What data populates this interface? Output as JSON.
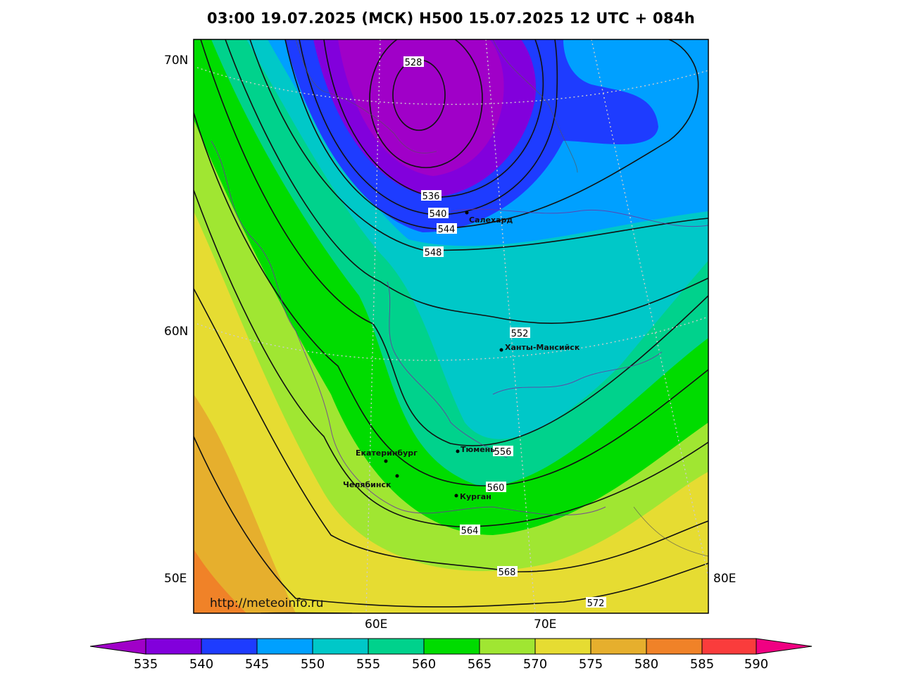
{
  "title": "03:00 19.07.2025 (МСК) H500  15.07.2025 12 UTC + 084h",
  "watermark": "http://meteoinfo.ru",
  "lat_labels": [
    "70N",
    "60N",
    "50E"
  ],
  "lon_labels": [
    "60E",
    "70E",
    "80E"
  ],
  "contour_labels": [
    "528",
    "536",
    "540",
    "544",
    "548",
    "552",
    "556",
    "560",
    "564",
    "568",
    "572"
  ],
  "cities": [
    {
      "name": "Салехард"
    },
    {
      "name": "Ханты-Мансийск"
    },
    {
      "name": "Тюмень"
    },
    {
      "name": "Екатеринбург"
    },
    {
      "name": "Челябинск"
    },
    {
      "name": "Курган"
    }
  ],
  "colorbar": {
    "ticks": [
      "535",
      "540",
      "545",
      "550",
      "555",
      "560",
      "565",
      "570",
      "575",
      "580",
      "585",
      "590"
    ],
    "colors": [
      "#a000c8",
      "#8200dc",
      "#1e3cff",
      "#00a0ff",
      "#00c8c8",
      "#00d28c",
      "#00dc00",
      "#a0e632",
      "#e6dc32",
      "#e6af2d",
      "#f08228",
      "#fa3c3c",
      "#f00082"
    ]
  }
}
